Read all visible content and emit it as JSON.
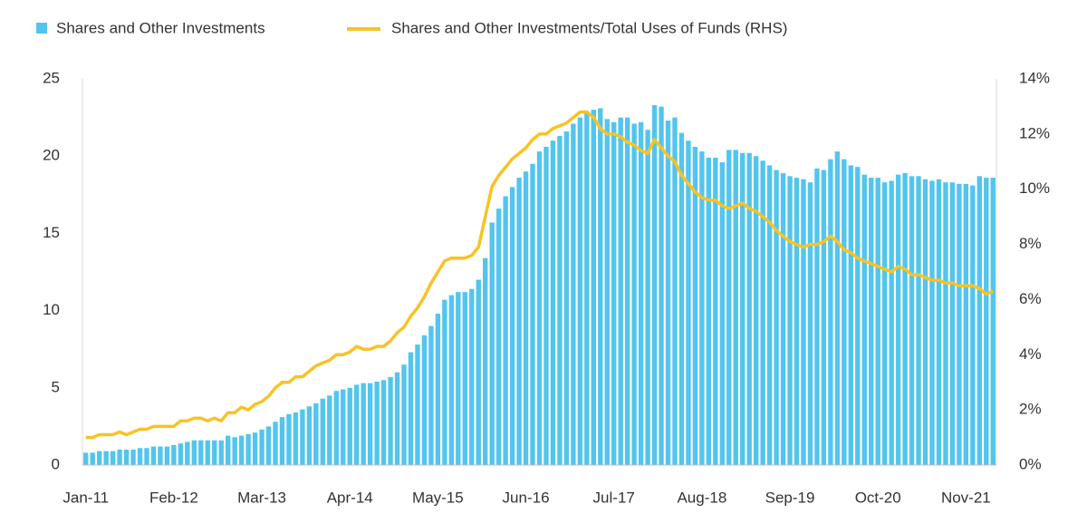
{
  "chart_data": {
    "type": "bar_line",
    "categories": [
      "Jan-11",
      null,
      null,
      null,
      null,
      null,
      null,
      null,
      null,
      null,
      null,
      null,
      null,
      "Feb-12",
      null,
      null,
      null,
      null,
      null,
      null,
      null,
      null,
      null,
      null,
      null,
      null,
      "Mar-13",
      null,
      null,
      null,
      null,
      null,
      null,
      null,
      null,
      null,
      null,
      null,
      null,
      "Apr-14",
      null,
      null,
      null,
      null,
      null,
      null,
      null,
      null,
      null,
      null,
      null,
      null,
      "May-15",
      null,
      null,
      null,
      null,
      null,
      null,
      null,
      null,
      null,
      null,
      null,
      null,
      "Jun-16",
      null,
      null,
      null,
      null,
      null,
      null,
      null,
      null,
      null,
      null,
      null,
      null,
      "Jul-17",
      null,
      null,
      null,
      null,
      null,
      null,
      null,
      null,
      null,
      null,
      null,
      null,
      "Aug-18",
      null,
      null,
      null,
      null,
      null,
      null,
      null,
      null,
      null,
      null,
      null,
      null,
      "Sep-19",
      null,
      null,
      null,
      null,
      null,
      null,
      null,
      null,
      null,
      null,
      null,
      null,
      "Oct-20",
      null,
      null,
      null,
      null,
      null,
      null,
      null,
      null,
      null,
      null,
      null,
      null,
      "Nov-21",
      null,
      null,
      null,
      null
    ],
    "series": [
      {
        "name": "Shares and Other Investments",
        "type": "bar",
        "color": "#52c5ee",
        "values": [
          0.8,
          0.8,
          0.9,
          0.9,
          0.9,
          1.0,
          1.0,
          1.0,
          1.1,
          1.1,
          1.2,
          1.2,
          1.2,
          1.3,
          1.4,
          1.5,
          1.6,
          1.6,
          1.6,
          1.6,
          1.6,
          1.9,
          1.8,
          1.9,
          2.0,
          2.1,
          2.3,
          2.5,
          2.8,
          3.1,
          3.3,
          3.4,
          3.6,
          3.8,
          4.0,
          4.3,
          4.5,
          4.8,
          4.9,
          5.0,
          5.2,
          5.3,
          5.3,
          5.4,
          5.5,
          5.7,
          6.0,
          6.5,
          7.3,
          7.8,
          8.4,
          9.0,
          9.8,
          10.7,
          11.0,
          11.2,
          11.2,
          11.4,
          12.0,
          13.4,
          15.7,
          16.6,
          17.4,
          18.0,
          18.6,
          19.0,
          19.5,
          20.3,
          20.6,
          21.0,
          21.3,
          21.6,
          22.1,
          22.5,
          22.9,
          23.0,
          23.1,
          22.4,
          22.2,
          22.5,
          22.5,
          22.1,
          22.2,
          21.7,
          23.3,
          23.2,
          22.3,
          22.5,
          21.5,
          21.0,
          20.6,
          20.3,
          19.9,
          19.9,
          19.6,
          20.4,
          20.4,
          20.2,
          20.2,
          20.0,
          19.7,
          19.4,
          19.1,
          18.9,
          18.7,
          18.6,
          18.5,
          18.3,
          19.2,
          19.1,
          19.8,
          20.3,
          19.8,
          19.4,
          19.3,
          18.8,
          18.6,
          18.6,
          18.3,
          18.4,
          18.8,
          18.9,
          18.7,
          18.7,
          18.5,
          18.4,
          18.5,
          18.3,
          18.3,
          18.2,
          18.2,
          18.1,
          18.7,
          18.6,
          18.6
        ]
      },
      {
        "name": "Shares and Other Investments/Total Uses of Funds (RHS)",
        "type": "line",
        "axis": "y2",
        "color": "#f7c325",
        "values": [
          1.0,
          1.0,
          1.1,
          1.1,
          1.1,
          1.2,
          1.1,
          1.2,
          1.3,
          1.3,
          1.4,
          1.4,
          1.4,
          1.4,
          1.6,
          1.6,
          1.7,
          1.7,
          1.6,
          1.7,
          1.6,
          1.9,
          1.9,
          2.1,
          2.0,
          2.2,
          2.3,
          2.5,
          2.8,
          3.0,
          3.0,
          3.2,
          3.2,
          3.4,
          3.6,
          3.7,
          3.8,
          4.0,
          4.0,
          4.1,
          4.3,
          4.2,
          4.2,
          4.3,
          4.3,
          4.5,
          4.8,
          5.0,
          5.4,
          5.7,
          6.1,
          6.6,
          7.0,
          7.4,
          7.5,
          7.5,
          7.5,
          7.6,
          7.9,
          9.0,
          10.1,
          10.5,
          10.8,
          11.1,
          11.3,
          11.5,
          11.8,
          12.0,
          12.0,
          12.2,
          12.3,
          12.4,
          12.6,
          12.8,
          12.8,
          12.6,
          12.2,
          12.0,
          12.0,
          11.9,
          11.7,
          11.6,
          11.4,
          11.3,
          11.8,
          11.5,
          11.2,
          11.0,
          10.5,
          10.2,
          9.9,
          9.7,
          9.6,
          9.6,
          9.4,
          9.3,
          9.4,
          9.5,
          9.3,
          9.2,
          9.0,
          8.8,
          8.5,
          8.3,
          8.1,
          8.0,
          7.9,
          8.0,
          8.0,
          8.1,
          8.3,
          8.1,
          7.8,
          7.7,
          7.5,
          7.4,
          7.3,
          7.2,
          7.1,
          7.0,
          7.2,
          7.1,
          6.9,
          6.9,
          6.8,
          6.7,
          6.7,
          6.6,
          6.6,
          6.5,
          6.5,
          6.5,
          6.4,
          6.2,
          6.3
        ]
      }
    ],
    "ylim": [
      0,
      25
    ],
    "yticks": [
      0,
      5,
      10,
      15,
      20,
      25
    ],
    "y2lim": [
      0,
      14
    ],
    "y2ticks": [
      {
        "value": 0,
        "label": "0%"
      },
      {
        "value": 2,
        "label": "2%"
      },
      {
        "value": 4,
        "label": "4%"
      },
      {
        "value": 6,
        "label": "6%"
      },
      {
        "value": 8,
        "label": "8%"
      },
      {
        "value": 10,
        "label": "10%"
      },
      {
        "value": 12,
        "label": "12%"
      },
      {
        "value": 14,
        "label": "14%"
      }
    ],
    "grid": false,
    "legend": "top"
  }
}
